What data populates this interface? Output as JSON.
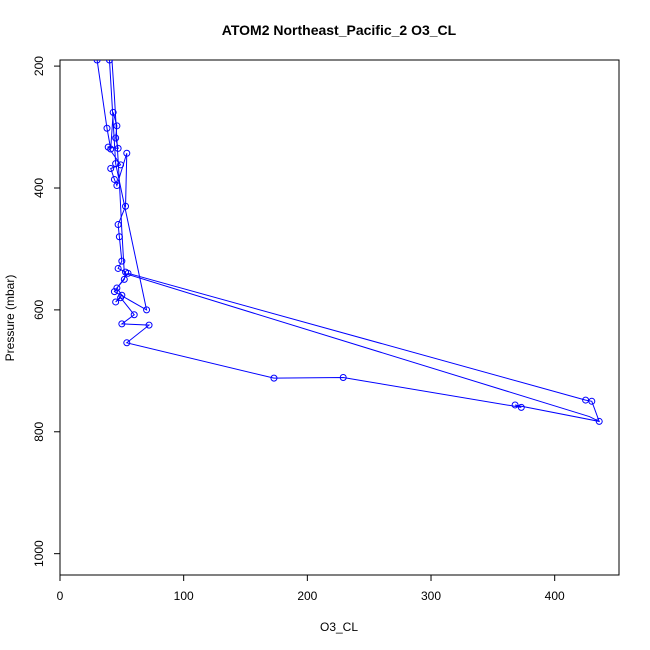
{
  "chart_data": {
    "type": "line",
    "title": "ATOM2 Northeast_Pacific_2 O3_CL",
    "xlabel": "O3_CL",
    "ylabel": "Pressure (mbar)",
    "xlim": [
      0,
      452
    ],
    "ylim": [
      1035,
      190
    ],
    "y_reversed": true,
    "x_ticks": [
      "0",
      "100",
      "200",
      "300",
      "400"
    ],
    "y_ticks": [
      "200",
      "400",
      "600",
      "800",
      "1000"
    ],
    "series_color": "#0000ff",
    "markers": "open-circle",
    "grid": false,
    "series": [
      {
        "values": [
          [
            30,
            190
          ],
          [
            38,
            302
          ],
          [
            41,
            336
          ],
          [
            43,
            276
          ],
          [
            46,
            298
          ],
          [
            45,
            318
          ],
          [
            47,
            335
          ],
          [
            39,
            333
          ],
          [
            49,
            362
          ],
          [
            41,
            368
          ],
          [
            44,
            386
          ],
          [
            46,
            396
          ],
          [
            54,
            343
          ],
          [
            53,
            430
          ],
          [
            47,
            460
          ],
          [
            48,
            480
          ],
          [
            50,
            520
          ],
          [
            47,
            532
          ],
          [
            53,
            538
          ],
          [
            52,
            550
          ],
          [
            46,
            564
          ],
          [
            50,
            576
          ],
          [
            45,
            587
          ],
          [
            49,
            580
          ],
          [
            60,
            608
          ],
          [
            50,
            623
          ],
          [
            72,
            625
          ],
          [
            54,
            654
          ],
          [
            173,
            712
          ],
          [
            229,
            711
          ],
          [
            373,
            760
          ],
          [
            368,
            756
          ],
          [
            436,
            783
          ],
          [
            430,
            750
          ],
          [
            425,
            748
          ],
          [
            55,
            540
          ],
          [
            44,
            570
          ],
          [
            70,
            600
          ],
          [
            45,
            360
          ],
          [
            40,
            190
          ]
        ]
      },
      {
        "values": [
          [
            42,
            190
          ],
          [
            44,
            250
          ],
          [
            46,
            320
          ],
          [
            48,
            390
          ],
          [
            50,
            470
          ],
          [
            52,
            540
          ],
          [
            428,
            775
          ],
          [
            436,
            783
          ]
        ]
      }
    ]
  }
}
